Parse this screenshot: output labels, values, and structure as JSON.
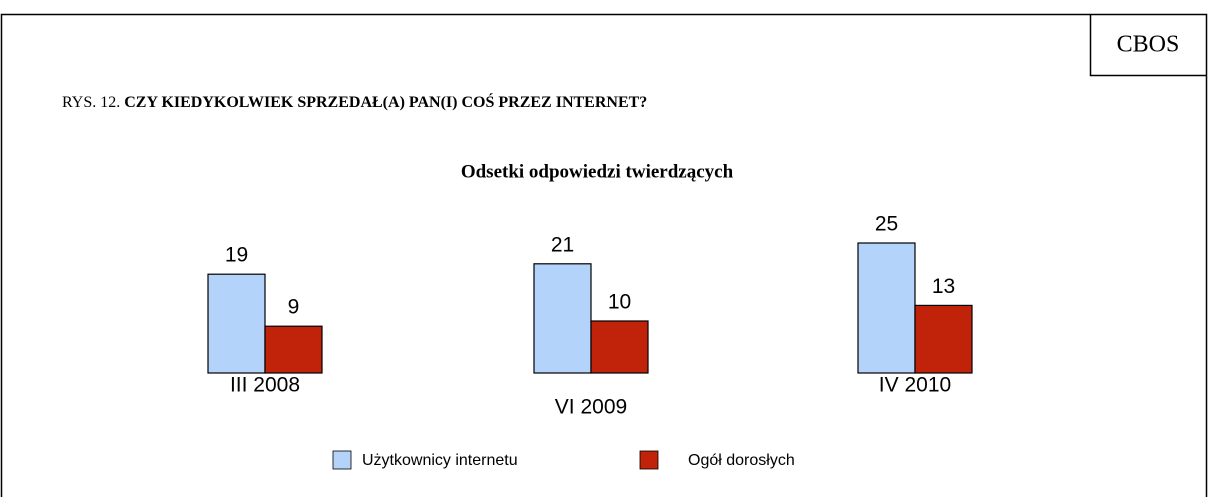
{
  "chart_data": {
    "type": "bar",
    "source": "CBOS",
    "figure_label": "RYS. 12.",
    "title": "CZY KIEDYKOLWIEK SPRZEDAŁ(A) PAN(I) COŚ PRZEZ INTERNET?",
    "subtitle": "Odsetki odpowiedzi twierdzących",
    "categories": [
      "III 2008",
      "VI 2009",
      "IV 2010"
    ],
    "series": [
      {
        "name": "Użytkownicy internetu",
        "color": "#b3d3fb",
        "values": [
          19,
          21,
          25
        ]
      },
      {
        "name": "Ogół dorosłych",
        "color": "#c1220a",
        "values": [
          9,
          10,
          13
        ]
      }
    ]
  }
}
